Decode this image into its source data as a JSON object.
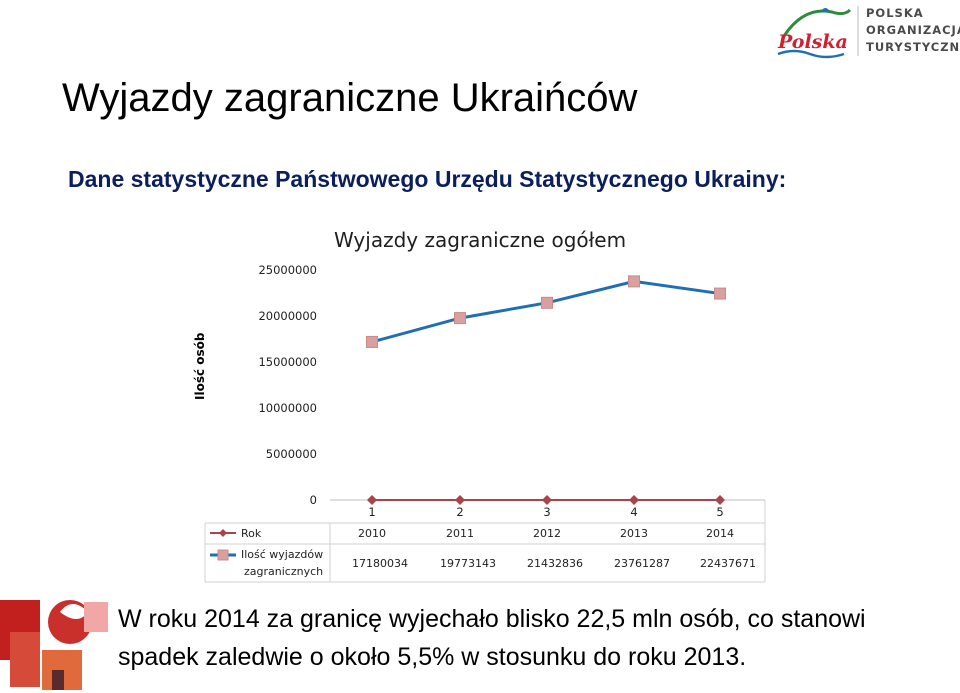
{
  "logo": {
    "word": "Polska",
    "brand_lines": [
      "POLSKA",
      "ORGANIZACJA",
      "TURYSTYCZNA"
    ]
  },
  "page": {
    "title": "Wyjazdy zagraniczne Ukraińców",
    "subtitle": "Dane statystyczne Państwowego Urzędu Statystycznego Ukrainy:",
    "caption_line1": "W roku 2014 za granicę wyjechało blisko 22,5 mln osób, co stanowi",
    "caption_line2": "spadek zaledwie o około 5,5% w stosunku do roku 2013."
  },
  "chart_data": {
    "type": "line",
    "title": "Wyjazdy zagraniczne ogółem",
    "ylabel": "Ilość osób",
    "xlabel": "",
    "categories": [
      "1",
      "2",
      "3",
      "4",
      "5"
    ],
    "ylim": [
      0,
      25000000
    ],
    "yticks": [
      "0",
      "5000000",
      "10000000",
      "15000000",
      "20000000",
      "25000000"
    ],
    "grid": false,
    "legend_position": "table below chart",
    "series": [
      {
        "name": "Rok",
        "color": "#a94548",
        "marker": "diamond",
        "values": [
          2010,
          2011,
          2012,
          2013,
          2014
        ]
      },
      {
        "name": "Ilość wyjazdów zagranicznych",
        "color": "#1f6fb2",
        "marker_color": "#d9a0a0",
        "marker": "square",
        "values": [
          17180034,
          19773143,
          21432836,
          23761287,
          22437671
        ]
      }
    ],
    "table": {
      "row1_label": "Rok",
      "row1_values": [
        "2010",
        "2011",
        "2012",
        "2013",
        "2014"
      ],
      "row2_label_line1": "Ilość wyjazdów",
      "row2_label_line2": "zagranicznych",
      "row2_values": [
        "17180034",
        "19773143",
        "21432836",
        "23761287",
        "22437671"
      ]
    }
  }
}
